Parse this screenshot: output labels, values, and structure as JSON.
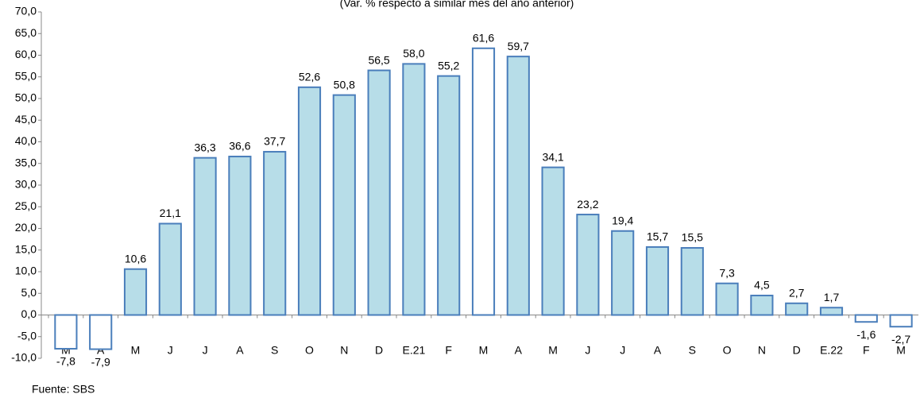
{
  "chart_data": {
    "type": "bar",
    "subtitle": "(Var. % respecto a similar mes del año anterior)",
    "source": "Fuente: SBS",
    "categories": [
      "M",
      "A",
      "M",
      "J",
      "J",
      "A",
      "S",
      "O",
      "N",
      "D",
      "E.21",
      "F",
      "M",
      "A",
      "M",
      "J",
      "J",
      "A",
      "S",
      "O",
      "N",
      "D",
      "E.22",
      "F",
      "M"
    ],
    "values": [
      -7.8,
      -7.9,
      10.6,
      21.1,
      36.3,
      36.6,
      37.7,
      52.6,
      50.8,
      56.5,
      58.0,
      55.2,
      61.6,
      59.7,
      34.1,
      23.2,
      19.4,
      15.7,
      15.5,
      7.3,
      4.5,
      2.7,
      1.7,
      -1.6,
      -2.7
    ],
    "value_labels": [
      "-7,8",
      "-7,9",
      "10,6",
      "21,1",
      "36,3",
      "36,6",
      "37,7",
      "52,6",
      "50,8",
      "56,5",
      "58,0",
      "55,2",
      "61,6",
      "59,7",
      "34,1",
      "23,2",
      "19,4",
      "15,7",
      "15,5",
      "7,3",
      "4,5",
      "2,7",
      "1,7",
      "-1,6",
      "-2,7"
    ],
    "colors": [
      "#ffffff",
      "#ffffff",
      "#b7dde8",
      "#b7dde8",
      "#b7dde8",
      "#b7dde8",
      "#b7dde8",
      "#b7dde8",
      "#b7dde8",
      "#b7dde8",
      "#b7dde8",
      "#b7dde8",
      "#ffffff",
      "#b7dde8",
      "#b7dde8",
      "#b7dde8",
      "#b7dde8",
      "#b7dde8",
      "#b7dde8",
      "#b7dde8",
      "#b7dde8",
      "#b7dde8",
      "#b7dde8",
      "#ffffff",
      "#ffffff"
    ],
    "edge_color": "#4a7ebb",
    "ylim": [
      -10,
      70
    ],
    "yticks": [
      {
        "value": -10,
        "label": "-10,0"
      },
      {
        "value": -5,
        "label": "-5,0"
      },
      {
        "value": 0,
        "label": "0,0"
      },
      {
        "value": 5,
        "label": "5,0"
      },
      {
        "value": 10,
        "label": "10,0"
      },
      {
        "value": 15,
        "label": "15,0"
      },
      {
        "value": 20,
        "label": "20,0"
      },
      {
        "value": 25,
        "label": "25,0"
      },
      {
        "value": 30,
        "label": "30,0"
      },
      {
        "value": 35,
        "label": "35,0"
      },
      {
        "value": 40,
        "label": "40,0"
      },
      {
        "value": 45,
        "label": "45,0"
      },
      {
        "value": 50,
        "label": "50,0"
      },
      {
        "value": 55,
        "label": "55,0"
      },
      {
        "value": 60,
        "label": "60,0"
      },
      {
        "value": 65,
        "label": "65,0"
      },
      {
        "value": 70,
        "label": "70,0"
      }
    ],
    "grid": false
  }
}
